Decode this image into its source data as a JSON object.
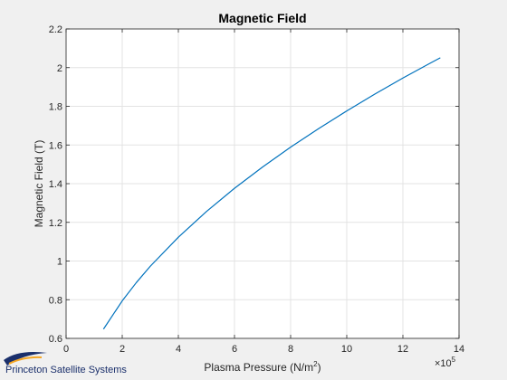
{
  "chart_data": {
    "type": "line",
    "title": "Magnetic Field",
    "xlabel": "Plasma Pressure (N/m",
    "xlabel_superscript": "2",
    "xlabel_suffix": ")",
    "ylabel": "Magnetic Field (T)",
    "x_exponent_base": "×10",
    "x_exponent_power": "5",
    "xlim": [
      0,
      14
    ],
    "ylim": [
      0.6,
      2.2
    ],
    "x_ticks": [
      "0",
      "2",
      "4",
      "6",
      "8",
      "10",
      "12",
      "14"
    ],
    "y_ticks": [
      "0.6",
      "0.8",
      "1",
      "1.2",
      "1.4",
      "1.6",
      "1.8",
      "2",
      "2.2"
    ],
    "grid": true,
    "series": [
      {
        "color": "#0072BD",
        "x": [
          1.333,
          2,
          2.5,
          3,
          4,
          5,
          6,
          7,
          8,
          9,
          10,
          11,
          12,
          13,
          13.333
        ],
        "y": [
          0.648,
          0.794,
          0.888,
          0.973,
          1.123,
          1.256,
          1.376,
          1.486,
          1.589,
          1.685,
          1.776,
          1.863,
          1.946,
          2.025,
          2.051
        ]
      }
    ]
  },
  "logo": {
    "text": "Princeton Satellite Systems",
    "color": "#1a2f6b"
  }
}
